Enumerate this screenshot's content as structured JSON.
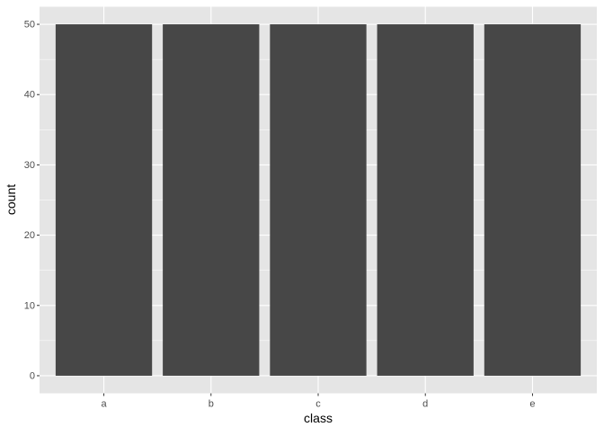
{
  "chart_data": {
    "type": "bar",
    "categories": [
      "a",
      "b",
      "c",
      "d",
      "e"
    ],
    "values": [
      50,
      50,
      50,
      50,
      50
    ],
    "title": "",
    "xlabel": "class",
    "ylabel": "count",
    "ylim": [
      -2.5,
      52.5
    ],
    "yticks": [
      0,
      10,
      20,
      30,
      40,
      50
    ],
    "grid": true,
    "colors": {
      "bar": "#474747",
      "panel": "#e5e5e5",
      "grid": "#ffffff"
    }
  }
}
